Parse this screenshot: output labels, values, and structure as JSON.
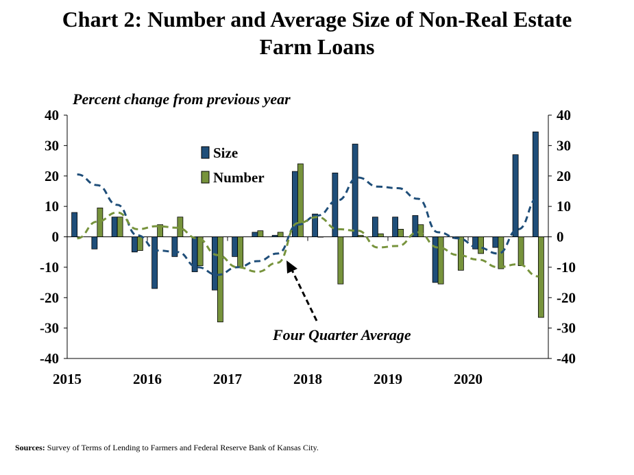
{
  "title_line1": "Chart 2: Number and Average Size of Non-Real Estate",
  "title_line2": "Farm Loans",
  "y_axis_label": "Percent change from previous year",
  "sources_label": "Sources:",
  "sources_text": "Survey of Terms of Lending to Farmers and Federal Reserve Bank of Kansas City.",
  "annotation": "Four Quarter Average",
  "colors": {
    "size": "#1f4e79",
    "number": "#77933c",
    "size_line": "#1f4e79",
    "number_line": "#77933c"
  },
  "chart_data": {
    "type": "bar",
    "title": "Chart 2: Number and Average Size of Non-Real Estate Farm Loans",
    "ylabel": "Percent change from previous year",
    "ylim": [
      -40,
      40
    ],
    "yticks": [
      40,
      30,
      20,
      10,
      0,
      -10,
      -20,
      -30,
      -40
    ],
    "x_year_labels": [
      "2015",
      "2016",
      "2017",
      "2018",
      "2019",
      "2020"
    ],
    "quarters": [
      "2015Q1",
      "2015Q2",
      "2015Q3",
      "2015Q4",
      "2016Q1",
      "2016Q2",
      "2016Q3",
      "2016Q4",
      "2017Q1",
      "2017Q2",
      "2017Q3",
      "2017Q4",
      "2018Q1",
      "2018Q2",
      "2018Q3",
      "2018Q4",
      "2019Q1",
      "2019Q2",
      "2019Q3",
      "2019Q4",
      "2020Q1",
      "2020Q2",
      "2020Q3",
      "2020Q4"
    ],
    "series": [
      {
        "name": "Size",
        "kind": "bar",
        "values": [
          8,
          -4,
          6.5,
          -5,
          -17,
          -6.5,
          -11.5,
          -17.5,
          -6.5,
          1.5,
          0.5,
          21.5,
          7.5,
          21,
          30.5,
          6.5,
          6.5,
          7,
          -15,
          -0.5,
          -4,
          -3.5,
          27,
          34.5
        ]
      },
      {
        "name": "Number",
        "kind": "bar",
        "values": [
          0,
          9.5,
          6.5,
          -4.5,
          4,
          6.5,
          -9.5,
          -28,
          -10,
          2,
          1.5,
          24,
          0,
          -15.5,
          0.5,
          1,
          2.5,
          4,
          -15.5,
          -11,
          -5.5,
          -10.5,
          -9.5,
          -26.5
        ]
      },
      {
        "name": "Size four quarter average",
        "kind": "line",
        "style": "dashed",
        "values": [
          20.5,
          17,
          10.5,
          0.5,
          -4.5,
          -5,
          -10,
          -12.5,
          -10,
          -8,
          -5.5,
          4,
          7,
          12,
          19.5,
          16.5,
          16,
          12.5,
          1.5,
          -0.5,
          -3.5,
          -5.5,
          2.5,
          13
        ]
      },
      {
        "name": "Number four quarter average",
        "kind": "line",
        "style": "dashed",
        "values": [
          -0.5,
          5,
          8,
          2.5,
          3.5,
          3,
          -0.5,
          -6,
          -10,
          -11.5,
          -8.5,
          4.5,
          6.5,
          2.5,
          2,
          -3.5,
          -3,
          1.5,
          -3.5,
          -6,
          -7.5,
          -10,
          -9,
          -13
        ]
      }
    ],
    "legend_position": "upper-left inside plot",
    "grid": false
  }
}
